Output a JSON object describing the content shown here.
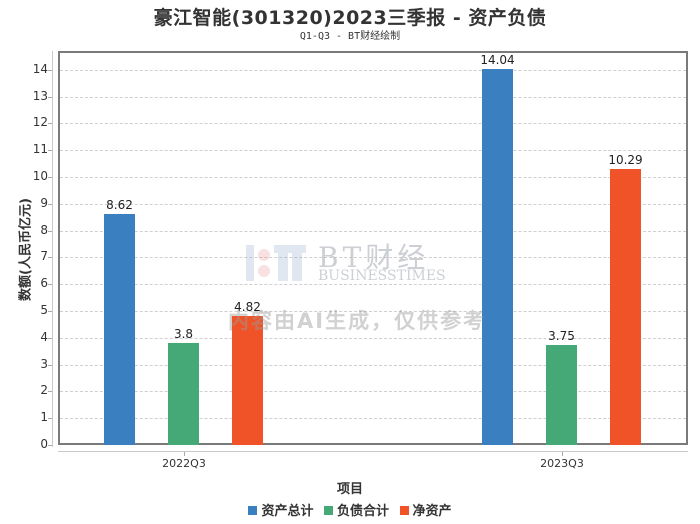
{
  "header": {
    "title": "豪江智能(301320)2023三季报 - 资产负债",
    "subtitle": "Q1-Q3 - BT财经绘制"
  },
  "watermark": {
    "brand": "BT财经",
    "brand_en": "BUSINESSTIMES",
    "notice": "内容由AI生成，仅供参考"
  },
  "colors": {
    "total_assets": "#3a80c0",
    "total_liabilities": "#45a877",
    "net_assets": "#f05328"
  },
  "chart_data": {
    "type": "bar",
    "title": "豪江智能(301320)2023三季报 - 资产负债",
    "subtitle": "Q1-Q3 - BT财经绘制",
    "xlabel": "项目",
    "ylabel": "数额(人民币亿元)",
    "categories": [
      "2022Q3",
      "2023Q3"
    ],
    "series": [
      {
        "name": "资产总计",
        "color": "#3a80c0",
        "values": [
          8.62,
          14.04
        ]
      },
      {
        "name": "负债合计",
        "color": "#45a877",
        "values": [
          3.8,
          3.75
        ]
      },
      {
        "name": "净资产",
        "color": "#f05328",
        "values": [
          4.82,
          10.29
        ]
      }
    ],
    "ylim": [
      0,
      14
    ],
    "yticks": [
      "0",
      "1",
      "2",
      "3",
      "4",
      "5",
      "6",
      "7",
      "8",
      "9",
      "10",
      "11",
      "12",
      "13",
      "14"
    ],
    "grid": true,
    "legend_position": "bottom"
  },
  "legend": [
    {
      "label": "资产总计"
    },
    {
      "label": "负债合计"
    },
    {
      "label": "净资产"
    }
  ]
}
